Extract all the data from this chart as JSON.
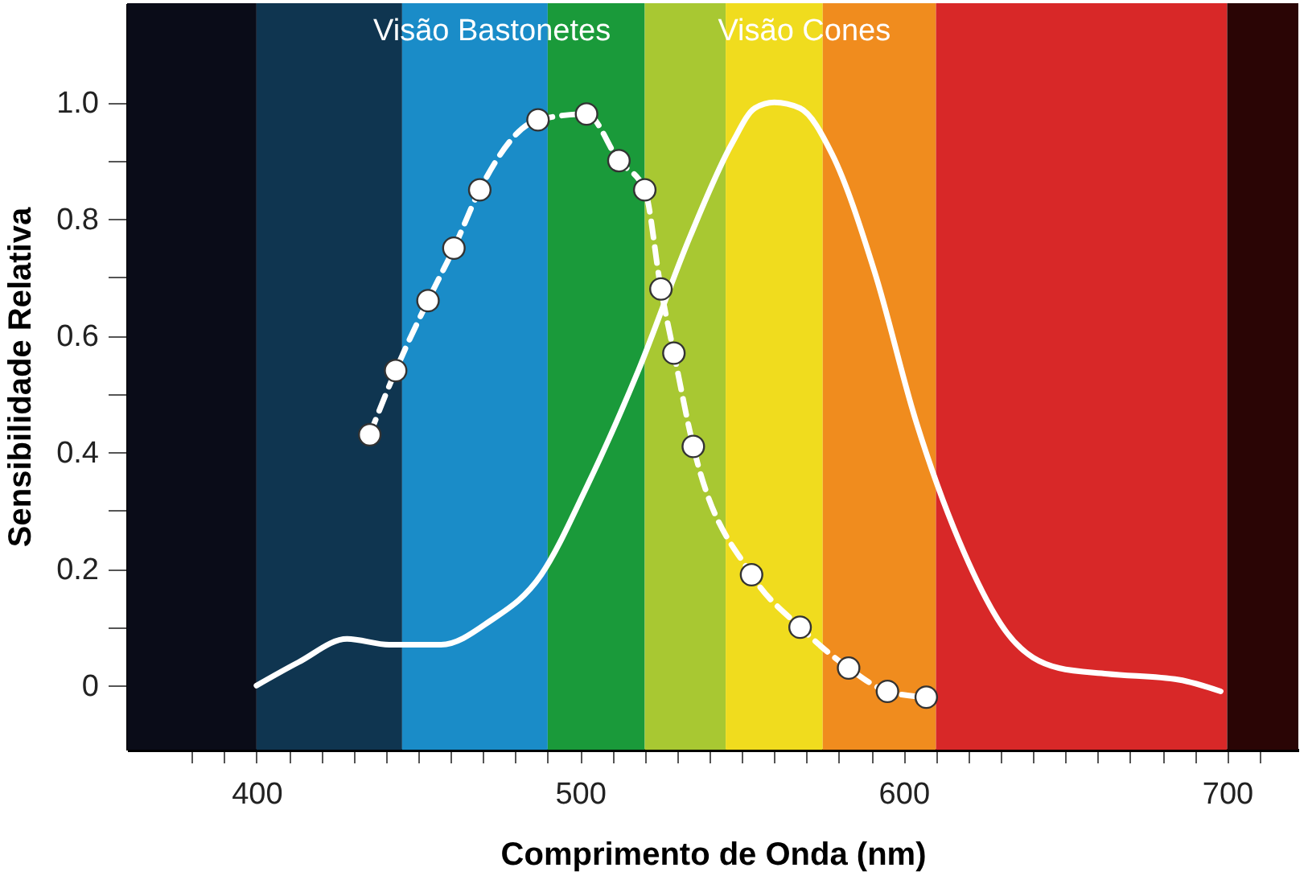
{
  "chart_data": {
    "type": "line",
    "xlabel": "Comprimento de Onda (nm)",
    "ylabel": "Sensibilidade Relativa",
    "x": [
      435,
      443,
      453,
      461,
      469,
      487,
      502,
      512,
      520,
      525,
      529,
      535,
      553,
      568,
      583,
      595,
      607
    ],
    "series": [
      {
        "name": "Visão Cones",
        "color": "#ffffff",
        "line_style": "solid",
        "marker": "none",
        "x": [
          400,
          413,
          428,
          441,
          457,
          472,
          488,
          502,
          518,
          534,
          547,
          554,
          560,
          568,
          578,
          591,
          604,
          617,
          632,
          648,
          663,
          685,
          698
        ],
        "values": [
          0.0,
          0.04,
          0.08,
          0.07,
          0.07,
          0.11,
          0.19,
          0.34,
          0.54,
          0.77,
          0.93,
          0.99,
          1.0,
          0.99,
          0.91,
          0.71,
          0.45,
          0.25,
          0.09,
          0.03,
          0.02,
          0.01,
          -0.01
        ]
      },
      {
        "name": "Visão Bastonetes",
        "color": "#ffffff",
        "line_style": "dashed",
        "marker": "circle",
        "values": [
          0.43,
          0.54,
          0.66,
          0.75,
          0.85,
          0.97,
          0.98,
          0.9,
          0.85,
          0.68,
          0.57,
          0.41,
          0.19,
          0.1,
          0.03,
          -0.01,
          -0.02
        ]
      }
    ],
    "xlim": [
      360,
      722
    ],
    "ylim": [
      -0.11,
      1.17
    ],
    "xticks": [
      {
        "value": 380,
        "label": null
      },
      {
        "value": 390,
        "label": null
      },
      400,
      {
        "value": 410,
        "label": null
      },
      {
        "value": 420,
        "label": null
      },
      {
        "value": 430,
        "label": null
      },
      {
        "value": 440,
        "label": null
      },
      {
        "value": 450,
        "label": null
      },
      {
        "value": 460,
        "label": null
      },
      {
        "value": 470,
        "label": null
      },
      {
        "value": 480,
        "label": null
      },
      {
        "value": 490,
        "label": null
      },
      500,
      {
        "value": 510,
        "label": null
      },
      {
        "value": 520,
        "label": null
      },
      {
        "value": 530,
        "label": null
      },
      {
        "value": 540,
        "label": null
      },
      {
        "value": 550,
        "label": null
      },
      {
        "value": 560,
        "label": null
      },
      {
        "value": 570,
        "label": null
      },
      {
        "value": 580,
        "label": null
      },
      {
        "value": 590,
        "label": null
      },
      600,
      {
        "value": 610,
        "label": null
      },
      {
        "value": 620,
        "label": null
      },
      {
        "value": 630,
        "label": null
      },
      {
        "value": 640,
        "label": null
      },
      {
        "value": 650,
        "label": null
      },
      {
        "value": 660,
        "label": null
      },
      {
        "value": 670,
        "label": null
      },
      {
        "value": 680,
        "label": null
      },
      {
        "value": 690,
        "label": null
      },
      700,
      {
        "value": 710,
        "label": null
      }
    ],
    "yticks": [
      0,
      {
        "value": 0.1,
        "label": null
      },
      0.2,
      {
        "value": 0.3,
        "label": null
      },
      0.4,
      {
        "value": 0.5,
        "label": null
      },
      0.6,
      {
        "value": 0.7,
        "label": null
      },
      0.8,
      {
        "value": 0.9,
        "label": null
      },
      {
        "value": 1,
        "label": "1.0"
      }
    ],
    "bands": [
      {
        "axis": "x",
        "from": 360,
        "to": 400,
        "color": "#0a0c18"
      },
      {
        "axis": "x",
        "from": 400,
        "to": 445,
        "color": "#0f3550"
      },
      {
        "axis": "x",
        "from": 445,
        "to": 490,
        "color": "#1a8cc8"
      },
      {
        "axis": "x",
        "from": 490,
        "to": 520,
        "color": "#1a9a3a"
      },
      {
        "axis": "x",
        "from": 520,
        "to": 545,
        "color": "#a8c832"
      },
      {
        "axis": "x",
        "from": 545,
        "to": 575,
        "color": "#f0dc1e"
      },
      {
        "axis": "x",
        "from": 575,
        "to": 610,
        "color": "#f08c1e"
      },
      {
        "axis": "x",
        "from": 610,
        "to": 700,
        "color": "#d82828"
      },
      {
        "axis": "x",
        "from": 700,
        "to": 722,
        "color": "#2a0505"
      }
    ],
    "grid": false,
    "legend": false
  }
}
